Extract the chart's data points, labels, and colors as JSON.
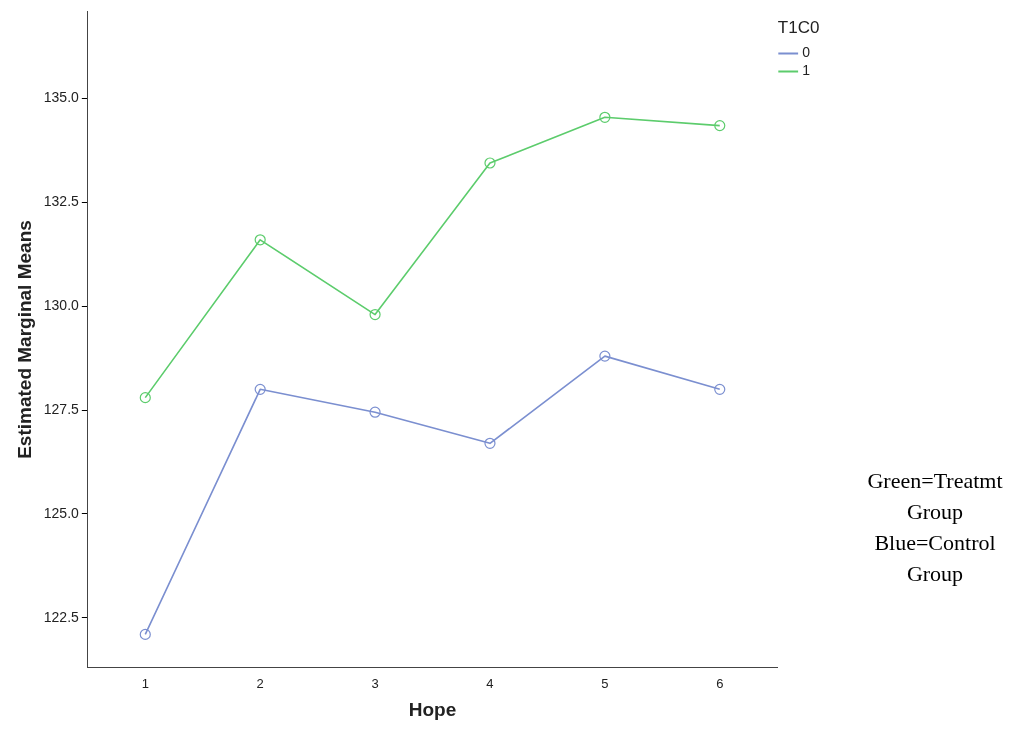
{
  "chart_data": {
    "type": "line",
    "xlabel": "Hope",
    "ylabel": "Estimated Marginal Means",
    "legend_title": "T1C0",
    "categories": [
      "1",
      "2",
      "3",
      "4",
      "5",
      "6"
    ],
    "series": [
      {
        "name": "0",
        "color": "#7b8fd0",
        "values": [
          122.1,
          128.0,
          127.45,
          126.7,
          128.8,
          128.0
        ]
      },
      {
        "name": "1",
        "color": "#5ccc6c",
        "values": [
          127.8,
          131.6,
          129.8,
          133.45,
          134.55,
          134.35
        ]
      }
    ],
    "ylim": [
      121.3,
      137.1
    ],
    "yticks": [
      {
        "value": 122.5,
        "label": "122.5"
      },
      {
        "value": 125,
        "label": "125.0"
      },
      {
        "value": 127.5,
        "label": "127.5"
      },
      {
        "value": 130,
        "label": "130.0"
      },
      {
        "value": 132.5,
        "label": "132.5"
      },
      {
        "value": 135,
        "label": "135.0"
      }
    ],
    "grid": false,
    "legend": "top right",
    "marker": "circle",
    "line_style": "solid",
    "annotations": [
      "Green=Treatmt Group Blue=Control Group"
    ]
  }
}
